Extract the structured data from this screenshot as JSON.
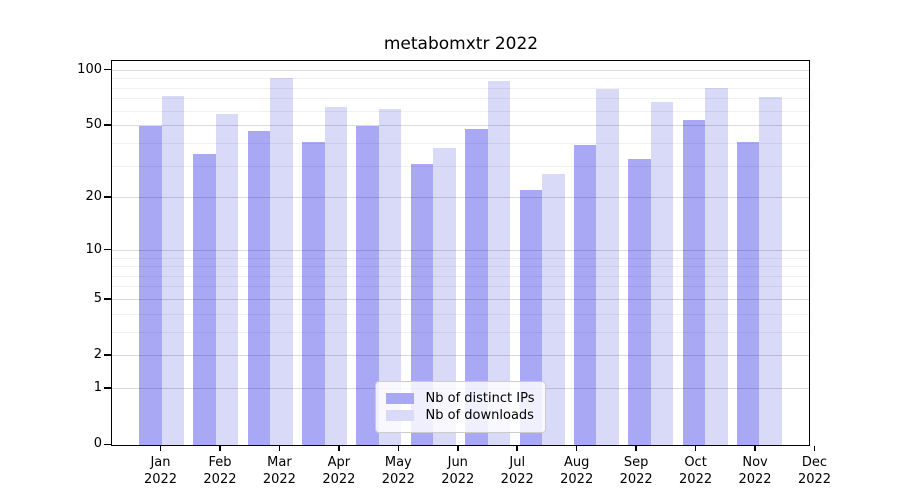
{
  "title": "metabomxtr 2022",
  "y_axis": {
    "tick_labels": [
      "100",
      "50",
      "20",
      "10",
      "5",
      "2",
      "1",
      "0"
    ]
  },
  "x_axis": {
    "year": "2022",
    "months": [
      "Jan",
      "Feb",
      "Mar",
      "Apr",
      "May",
      "Jun",
      "Jul",
      "Aug",
      "Sep",
      "Oct",
      "Nov",
      "Dec"
    ]
  },
  "legend": {
    "items": [
      "Nb of distinct IPs",
      "Nb of downloads"
    ]
  },
  "chart_data": {
    "type": "bar",
    "title": "metabomxtr 2022",
    "categories": [
      "Jan 2022",
      "Feb 2022",
      "Mar 2022",
      "Apr 2022",
      "May 2022",
      "Jun 2022",
      "Jul 2022",
      "Aug 2022",
      "Sep 2022",
      "Oct 2022",
      "Nov 2022",
      "Dec 2022"
    ],
    "series": [
      {
        "name": "Nb of distinct IPs",
        "color": "#a8a8f5",
        "values": [
          50,
          35,
          47,
          41,
          50,
          31,
          48,
          22,
          39,
          33,
          54,
          41
        ]
      },
      {
        "name": "Nb of downloads",
        "color": "#d9d9f8",
        "values": [
          73,
          58,
          91,
          63,
          62,
          38,
          88,
          27,
          79,
          67,
          80,
          72
        ]
      }
    ],
    "xlabel": "",
    "ylabel": "",
    "yscale": "log1p",
    "ylim": [
      0,
      110.5
    ],
    "yticks": [
      100,
      50,
      20,
      10,
      5,
      2,
      1,
      0
    ],
    "minor_gridlines": [
      3,
      4,
      6,
      7,
      8,
      9,
      30,
      40,
      60,
      70,
      80,
      90
    ],
    "grid": true,
    "legend_position": "lower center"
  }
}
